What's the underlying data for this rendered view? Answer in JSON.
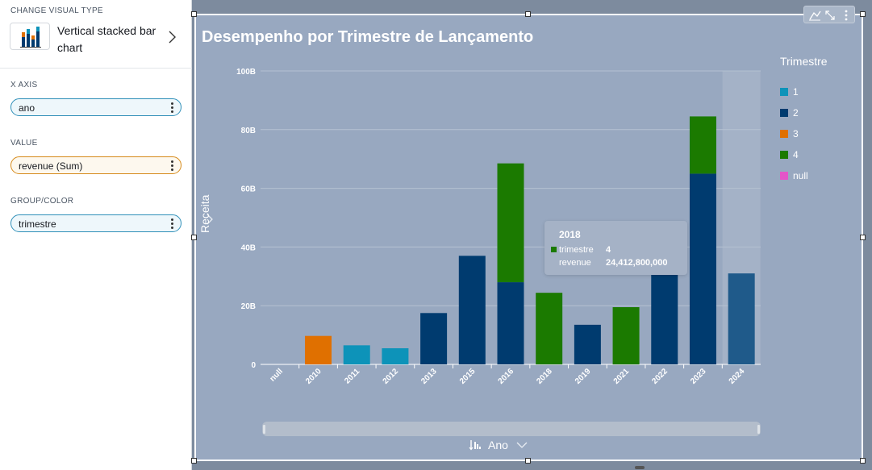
{
  "left_panel": {
    "visual_type_label": "CHANGE VISUAL TYPE",
    "visual_type_name": "Vertical stacked bar chart",
    "x_axis_label": "X AXIS",
    "x_axis_field": "ano",
    "value_label": "VALUE",
    "value_field": "revenue (Sum)",
    "group_label": "GROUP/COLOR",
    "group_field": "trimestre"
  },
  "visual": {
    "title": "Desempenho por Trimestre de Lançamento",
    "x_axis_title": "Ano",
    "legend_title": "Trimestre",
    "tooltip": {
      "title": "2018",
      "rows": [
        {
          "key": "trimestre",
          "value": "4"
        },
        {
          "key": "revenue",
          "value": "24,412,800,000"
        }
      ]
    }
  },
  "chart_data": {
    "type": "bar",
    "stacked": true,
    "title": "Desempenho por Trimestre de Lançamento",
    "xlabel": "Ano",
    "ylabel": "Receita",
    "ylim": [
      0,
      100
    ],
    "y_ticks": [
      "0",
      "20B",
      "40B",
      "60B",
      "80B",
      "100B"
    ],
    "categories": [
      "null",
      "2010",
      "2011",
      "2012",
      "2013",
      "2015",
      "2016",
      "2018",
      "2019",
      "2021",
      "2022",
      "2023",
      "2024"
    ],
    "legend_title": "Trimestre",
    "legend_position": "right",
    "grid": true,
    "highlighted_category": "2024",
    "series": [
      {
        "name": "1",
        "color": "#0d93b9",
        "values": [
          0,
          0,
          6.5,
          5.5,
          0,
          0,
          0,
          0,
          0,
          0,
          0,
          0,
          0
        ]
      },
      {
        "name": "2",
        "color": "#003b6f",
        "values": [
          0,
          0,
          0,
          0,
          17.5,
          37,
          28,
          0,
          13.5,
          0,
          31,
          65,
          31
        ]
      },
      {
        "name": "3",
        "color": "#e07000",
        "values": [
          0,
          9.7,
          0,
          0,
          0,
          0,
          0,
          0,
          0,
          0,
          0,
          0,
          0
        ]
      },
      {
        "name": "4",
        "color": "#1b7a00",
        "values": [
          0,
          0,
          0,
          0,
          0,
          0,
          40.5,
          24.4,
          0,
          19.5,
          0,
          19.5,
          0
        ]
      },
      {
        "name": "null",
        "color": "#e455c8",
        "values": [
          0,
          0,
          0,
          0,
          0,
          0,
          0,
          0,
          0,
          0,
          0,
          0,
          0
        ]
      }
    ]
  }
}
